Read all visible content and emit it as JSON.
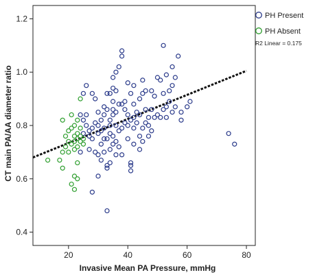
{
  "chart_data": {
    "type": "scatter",
    "xlabel": "Invasive Mean PA Pressure, mmHg",
    "ylabel": "CT main PA/AA diameter ratio",
    "xlim": [
      8,
      83
    ],
    "ylim": [
      0.35,
      1.25
    ],
    "x_ticks": [
      20,
      40,
      60,
      80
    ],
    "y_ticks": [
      0.4,
      0.6,
      0.8,
      1.0,
      1.2
    ],
    "x_tick_labels": [
      "20",
      "40",
      "60",
      "80"
    ],
    "y_tick_labels": [
      "0.4",
      "0.6",
      "0.8",
      "1.0",
      "1.2"
    ],
    "grid": false,
    "legend_position": "top-right",
    "annotation": "R2 Linear = 0.175",
    "fit_line": {
      "style": "dashed",
      "color": "#111111",
      "points": [
        [
          8,
          0.68
        ],
        [
          80,
          1.005
        ]
      ]
    },
    "series": [
      {
        "name": "PH Present",
        "color": "#2a3a8a",
        "points": [
          [
            33,
            0.48
          ],
          [
            28,
            0.55
          ],
          [
            30,
            0.61
          ],
          [
            33,
            0.65
          ],
          [
            33,
            0.64
          ],
          [
            34,
            0.66
          ],
          [
            36,
            0.69
          ],
          [
            41,
            0.66
          ],
          [
            41,
            0.65
          ],
          [
            41,
            0.63
          ],
          [
            38,
            0.69
          ],
          [
            30,
            0.69
          ],
          [
            31,
            0.67
          ],
          [
            24,
            0.7
          ],
          [
            27,
            0.71
          ],
          [
            32,
            0.7
          ],
          [
            34,
            0.71
          ],
          [
            35,
            0.73
          ],
          [
            44,
            0.71
          ],
          [
            40,
            0.75
          ],
          [
            36,
            0.74
          ],
          [
            28,
            0.75
          ],
          [
            30,
            0.77
          ],
          [
            32,
            0.79
          ],
          [
            33,
            0.75
          ],
          [
            34,
            0.77
          ],
          [
            35,
            0.76
          ],
          [
            36,
            0.8
          ],
          [
            37,
            0.78
          ],
          [
            38,
            0.79
          ],
          [
            39,
            0.81
          ],
          [
            40,
            0.8
          ],
          [
            41,
            0.82
          ],
          [
            42,
            0.79
          ],
          [
            43,
            0.81
          ],
          [
            44,
            0.76
          ],
          [
            45,
            0.79
          ],
          [
            46,
            0.81
          ],
          [
            47,
            0.8
          ],
          [
            42,
            0.83
          ],
          [
            43,
            0.85
          ],
          [
            44,
            0.84
          ],
          [
            46,
            0.86
          ],
          [
            47,
            0.83
          ],
          [
            48,
            0.86
          ],
          [
            49,
            0.83
          ],
          [
            50,
            0.84
          ],
          [
            51,
            0.83
          ],
          [
            52,
            0.86
          ],
          [
            53,
            0.87
          ],
          [
            54,
            0.89
          ],
          [
            55,
            0.85
          ],
          [
            56,
            0.87
          ],
          [
            53,
            0.83
          ],
          [
            52,
            0.92
          ],
          [
            54,
            0.93
          ],
          [
            55,
            0.95
          ],
          [
            51,
            0.97
          ],
          [
            50,
            0.98
          ],
          [
            53,
            0.99
          ],
          [
            56,
            0.98
          ],
          [
            55,
            1.02
          ],
          [
            57,
            1.06
          ],
          [
            52,
            1.1
          ],
          [
            38,
            1.08
          ],
          [
            38,
            1.06
          ],
          [
            37,
            1.02
          ],
          [
            36,
            1.0
          ],
          [
            35,
            0.98
          ],
          [
            35,
            0.94
          ],
          [
            34,
            0.92
          ],
          [
            36,
            0.93
          ],
          [
            33,
            0.92
          ],
          [
            39,
            0.89
          ],
          [
            37,
            0.88
          ],
          [
            35,
            0.86
          ],
          [
            35,
            0.84
          ],
          [
            36,
            0.85
          ],
          [
            34,
            0.82
          ],
          [
            32,
            0.84
          ],
          [
            31,
            0.82
          ],
          [
            30,
            0.8
          ],
          [
            29,
            0.81
          ],
          [
            28,
            0.79
          ],
          [
            27,
            0.78
          ],
          [
            26,
            0.8
          ],
          [
            25,
            0.82
          ],
          [
            26,
            0.84
          ],
          [
            27,
            0.76
          ],
          [
            29,
            0.9
          ],
          [
            28,
            0.92
          ],
          [
            26,
            0.95
          ],
          [
            25,
            0.92
          ],
          [
            24,
            0.84
          ],
          [
            25,
            0.77
          ],
          [
            31,
            0.73
          ],
          [
            32,
            0.75
          ],
          [
            37,
            0.72
          ],
          [
            42,
            0.73
          ],
          [
            45,
            0.74
          ],
          [
            47,
            0.76
          ],
          [
            48,
            0.78
          ],
          [
            44,
            0.9
          ],
          [
            45,
            0.92
          ],
          [
            46,
            0.93
          ],
          [
            42,
            0.95
          ],
          [
            40,
            0.96
          ],
          [
            41,
            0.92
          ],
          [
            42,
            0.88
          ],
          [
            39,
            0.86
          ],
          [
            40,
            0.84
          ],
          [
            38,
            0.88
          ],
          [
            58,
            0.82
          ],
          [
            60,
            0.87
          ],
          [
            61,
            0.89
          ],
          [
            58,
            0.85
          ],
          [
            49,
            0.91
          ],
          [
            48,
            0.93
          ],
          [
            45,
            0.97
          ],
          [
            74,
            0.77
          ],
          [
            76,
            0.73
          ],
          [
            35,
            0.89
          ],
          [
            34,
            0.8
          ],
          [
            29,
            0.7
          ],
          [
            31,
            0.78
          ],
          [
            30,
            0.85
          ],
          [
            32,
            0.87
          ],
          [
            33,
            0.86
          ]
        ]
      },
      {
        "name": "PH Absent",
        "color": "#2e9e2e",
        "points": [
          [
            13,
            0.67
          ],
          [
            17,
            0.67
          ],
          [
            18,
            0.82
          ],
          [
            18,
            0.7
          ],
          [
            19,
            0.72
          ],
          [
            19,
            0.76
          ],
          [
            20,
            0.74
          ],
          [
            20,
            0.78
          ],
          [
            21,
            0.58
          ],
          [
            21,
            0.73
          ],
          [
            21,
            0.79
          ],
          [
            21,
            0.84
          ],
          [
            22,
            0.56
          ],
          [
            22,
            0.61
          ],
          [
            22,
            0.71
          ],
          [
            22,
            0.74
          ],
          [
            22,
            0.76
          ],
          [
            22,
            0.8
          ],
          [
            23,
            0.6
          ],
          [
            23,
            0.66
          ],
          [
            23,
            0.72
          ],
          [
            23,
            0.75
          ],
          [
            23,
            0.77
          ],
          [
            23,
            0.82
          ],
          [
            24,
            0.74
          ],
          [
            24,
            0.76
          ],
          [
            24,
            0.79
          ],
          [
            24,
            0.9
          ],
          [
            25,
            0.73
          ],
          [
            25,
            0.75
          ],
          [
            20,
            0.7
          ],
          [
            18,
            0.64
          ]
        ]
      }
    ]
  }
}
